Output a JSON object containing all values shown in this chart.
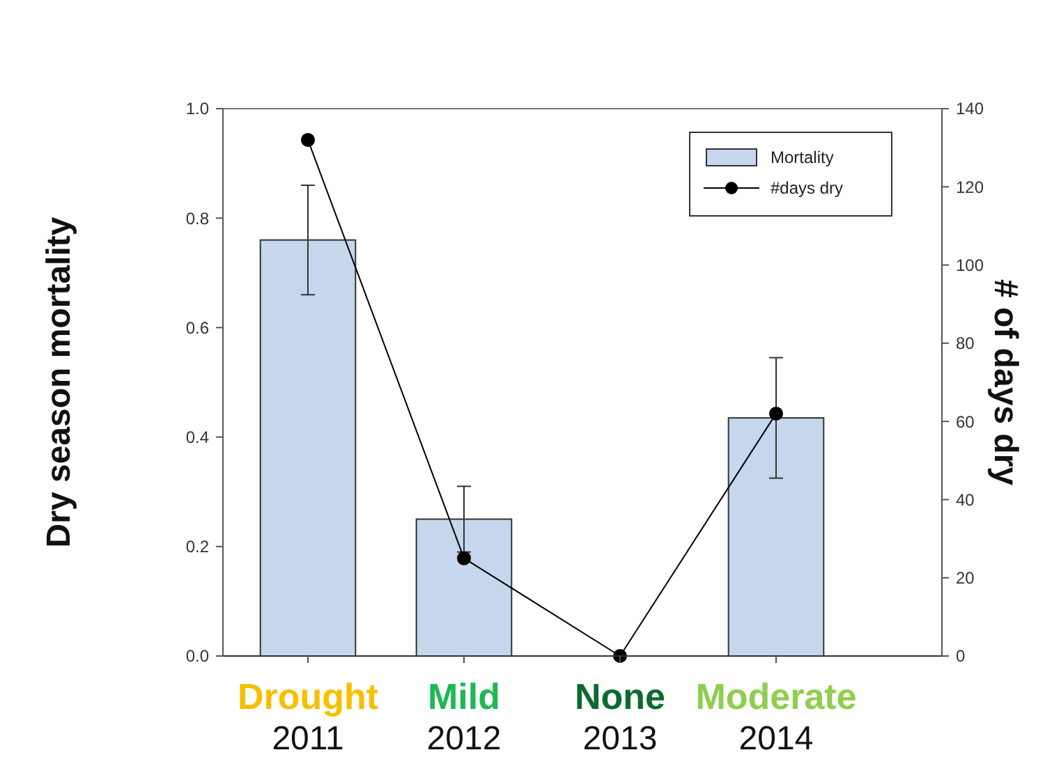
{
  "chart_data": {
    "type": "bar",
    "xlabel": null,
    "ylabel": "Dry season mortality",
    "y2label": "# of days dry",
    "categories": [
      "2011",
      "2012",
      "2013",
      "2014"
    ],
    "series": [
      {
        "name": "Mortality",
        "color": "#c6d6ec",
        "values": [
          0.76,
          0.25,
          null,
          0.435
        ],
        "errors": [
          0.1,
          0.06,
          null,
          0.11
        ]
      },
      {
        "name": "#days dry",
        "type": "line",
        "axis": "y2",
        "color": "#000000",
        "values": [
          132,
          25,
          0,
          62
        ]
      }
    ],
    "annotations": [
      "Drought",
      "Mild",
      "None",
      "Moderate"
    ],
    "ylim": [
      0,
      1
    ],
    "yticks": [
      {
        "value": 0,
        "label": "0.0"
      },
      0.2,
      0.4,
      0.6,
      0.8,
      {
        "value": 1,
        "label": "1.0"
      }
    ],
    "y2lim": [
      0,
      140
    ],
    "y2ticks": [
      0,
      20,
      40,
      60,
      80,
      100,
      120,
      140
    ],
    "marker": "circle",
    "legend": "top right"
  }
}
